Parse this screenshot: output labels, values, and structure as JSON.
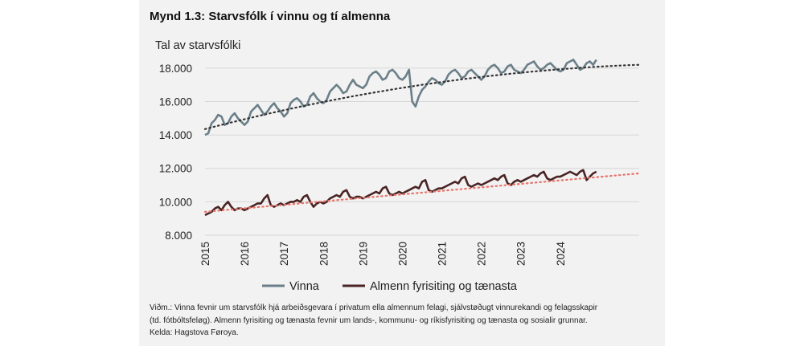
{
  "figure": {
    "title": "Mynd 1.3: Starvsfólk í vinnu og tí almenna",
    "note_line1": "Viðm.: Vinna fevnir um starvsfólk hjá arbeiðsgevara í privatum ella almennum felagi, sjálvstøðugt vinnurekandi og felagsskapir",
    "note_line2": "(td. fótbóltsfeløg). Almenn fyrisiting og tænasta fevnir um lands-, kommunu- og ríkisfyrisiting og tænasta og sosialir grunnar.",
    "source": "Kelda: Hagstova Føroya."
  },
  "chart_data": {
    "type": "line",
    "title": "",
    "ylabel": "Tal av starvsfólki",
    "xlabel": "",
    "ylim": [
      8000,
      19000
    ],
    "yticks": [
      8000,
      10000,
      12000,
      14000,
      16000,
      18000
    ],
    "ytick_labels": [
      "8.000",
      "10.000",
      "12.000",
      "14.000",
      "16.000",
      "18.000"
    ],
    "xlim": [
      2015,
      2026
    ],
    "xticks": [
      "2015",
      "2016",
      "2017",
      "2018",
      "2019",
      "2020",
      "2021",
      "2022",
      "2023",
      "2024"
    ],
    "grid": true,
    "legend_position": "bottom",
    "series": [
      {
        "name": "Vinna",
        "color": "#6b7f89",
        "x": [
          2015.0,
          2015.083,
          2015.167,
          2015.25,
          2015.333,
          2015.417,
          2015.5,
          2015.583,
          2015.667,
          2015.75,
          2015.833,
          2015.917,
          2016.0,
          2016.083,
          2016.167,
          2016.25,
          2016.333,
          2016.417,
          2016.5,
          2016.583,
          2016.667,
          2016.75,
          2016.833,
          2016.917,
          2017.0,
          2017.083,
          2017.167,
          2017.25,
          2017.333,
          2017.417,
          2017.5,
          2017.583,
          2017.667,
          2017.75,
          2017.833,
          2017.917,
          2018.0,
          2018.083,
          2018.167,
          2018.25,
          2018.333,
          2018.417,
          2018.5,
          2018.583,
          2018.667,
          2018.75,
          2018.833,
          2018.917,
          2019.0,
          2019.083,
          2019.167,
          2019.25,
          2019.333,
          2019.417,
          2019.5,
          2019.583,
          2019.667,
          2019.75,
          2019.833,
          2019.917,
          2020.0,
          2020.083,
          2020.167,
          2020.25,
          2020.333,
          2020.417,
          2020.5,
          2020.583,
          2020.667,
          2020.75,
          2020.833,
          2020.917,
          2021.0,
          2021.083,
          2021.167,
          2021.25,
          2021.333,
          2021.417,
          2021.5,
          2021.583,
          2021.667,
          2021.75,
          2021.833,
          2021.917,
          2022.0,
          2022.083,
          2022.167,
          2022.25,
          2022.333,
          2022.417,
          2022.5,
          2022.583,
          2022.667,
          2022.75,
          2022.833,
          2022.917,
          2023.0,
          2023.083,
          2023.167,
          2023.25,
          2023.333,
          2023.417,
          2023.5,
          2023.583,
          2023.667,
          2023.75,
          2023.833,
          2023.917,
          2024.0,
          2024.083,
          2024.167,
          2024.25,
          2024.333,
          2024.417,
          2024.5,
          2024.583,
          2024.667,
          2024.75,
          2024.833,
          2024.917
        ],
        "y": [
          14000,
          14100,
          14700,
          14900,
          15200,
          15100,
          14600,
          14700,
          15100,
          15300,
          15000,
          14800,
          14600,
          14800,
          15400,
          15600,
          15800,
          15500,
          15200,
          15400,
          15700,
          15900,
          15600,
          15400,
          15100,
          15300,
          15900,
          16100,
          16200,
          16000,
          15700,
          15800,
          16300,
          16500,
          16200,
          16000,
          15900,
          16100,
          16600,
          16800,
          17000,
          16800,
          16500,
          16600,
          17000,
          17300,
          17000,
          16900,
          16800,
          17000,
          17500,
          17700,
          17800,
          17600,
          17300,
          17400,
          17800,
          17900,
          17700,
          17400,
          17300,
          17500,
          17900,
          16000,
          15700,
          16300,
          16700,
          16900,
          17200,
          17400,
          17300,
          17100,
          17000,
          17200,
          17600,
          17800,
          17900,
          17700,
          17400,
          17500,
          17800,
          17900,
          17700,
          17500,
          17300,
          17500,
          17900,
          18100,
          18200,
          18000,
          17700,
          17800,
          18100,
          18200,
          17900,
          17800,
          17700,
          17900,
          18200,
          18300,
          18400,
          18100,
          17900,
          18000,
          18200,
          18300,
          18100,
          17900,
          17800,
          17900,
          18300,
          18400,
          18500,
          18200,
          17900,
          18000,
          18300,
          18400,
          18200,
          18500
        ]
      },
      {
        "name": "Almenn fyrisiting og tænasta",
        "color": "#4a2424",
        "x": [
          2015.0,
          2015.083,
          2015.167,
          2015.25,
          2015.333,
          2015.417,
          2015.5,
          2015.583,
          2015.667,
          2015.75,
          2015.833,
          2015.917,
          2016.0,
          2016.083,
          2016.167,
          2016.25,
          2016.333,
          2016.417,
          2016.5,
          2016.583,
          2016.667,
          2016.75,
          2016.833,
          2016.917,
          2017.0,
          2017.083,
          2017.167,
          2017.25,
          2017.333,
          2017.417,
          2017.5,
          2017.583,
          2017.667,
          2017.75,
          2017.833,
          2017.917,
          2018.0,
          2018.083,
          2018.167,
          2018.25,
          2018.333,
          2018.417,
          2018.5,
          2018.583,
          2018.667,
          2018.75,
          2018.833,
          2018.917,
          2019.0,
          2019.083,
          2019.167,
          2019.25,
          2019.333,
          2019.417,
          2019.5,
          2019.583,
          2019.667,
          2019.75,
          2019.833,
          2019.917,
          2020.0,
          2020.083,
          2020.167,
          2020.25,
          2020.333,
          2020.417,
          2020.5,
          2020.583,
          2020.667,
          2020.75,
          2020.833,
          2020.917,
          2021.0,
          2021.083,
          2021.167,
          2021.25,
          2021.333,
          2021.417,
          2021.5,
          2021.583,
          2021.667,
          2021.75,
          2021.833,
          2021.917,
          2022.0,
          2022.083,
          2022.167,
          2022.25,
          2022.333,
          2022.417,
          2022.5,
          2022.583,
          2022.667,
          2022.75,
          2022.833,
          2022.917,
          2023.0,
          2023.083,
          2023.167,
          2023.25,
          2023.333,
          2023.417,
          2023.5,
          2023.583,
          2023.667,
          2023.75,
          2023.833,
          2023.917,
          2024.0,
          2024.083,
          2024.167,
          2024.25,
          2024.333,
          2024.417,
          2024.5,
          2024.583,
          2024.667,
          2024.75,
          2024.833,
          2024.917
        ],
        "y": [
          9200,
          9300,
          9400,
          9600,
          9700,
          9500,
          9800,
          10000,
          9700,
          9500,
          9600,
          9600,
          9500,
          9600,
          9700,
          9800,
          9900,
          9900,
          10200,
          10400,
          9800,
          9700,
          9800,
          9900,
          9800,
          9900,
          10000,
          10000,
          10100,
          10000,
          10300,
          10400,
          10000,
          9700,
          9900,
          10000,
          9900,
          10000,
          10200,
          10300,
          10400,
          10300,
          10600,
          10700,
          10300,
          10200,
          10300,
          10300,
          10200,
          10300,
          10400,
          10500,
          10600,
          10500,
          10800,
          10900,
          10500,
          10400,
          10500,
          10600,
          10500,
          10600,
          10700,
          10800,
          10900,
          10800,
          11200,
          11300,
          10700,
          10600,
          10700,
          10800,
          10800,
          10900,
          11000,
          11100,
          11200,
          11100,
          11400,
          11500,
          11000,
          10900,
          11000,
          11100,
          11000,
          11100,
          11200,
          11300,
          11400,
          11300,
          11500,
          11600,
          11100,
          11000,
          11200,
          11300,
          11200,
          11300,
          11400,
          11500,
          11600,
          11500,
          11700,
          11800,
          11400,
          11300,
          11400,
          11500,
          11500,
          11600,
          11700,
          11800,
          11700,
          11600,
          11800,
          11900,
          11300,
          11500,
          11700,
          11800
        ]
      }
    ],
    "trendlines": [
      {
        "series": "Vinna",
        "color": "#333333",
        "style": "dotted",
        "x": [
          2015.0,
          2026.0
        ],
        "y": [
          14350,
          18200
        ],
        "shape": "quadratic",
        "mid": [
          2020.5,
          17000
        ]
      },
      {
        "series": "Almenn fyrisiting og tænasta",
        "color": "#e8746a",
        "style": "dotted",
        "x": [
          2015.0,
          2026.0
        ],
        "y": [
          9400,
          11700
        ],
        "shape": "linear"
      }
    ]
  }
}
